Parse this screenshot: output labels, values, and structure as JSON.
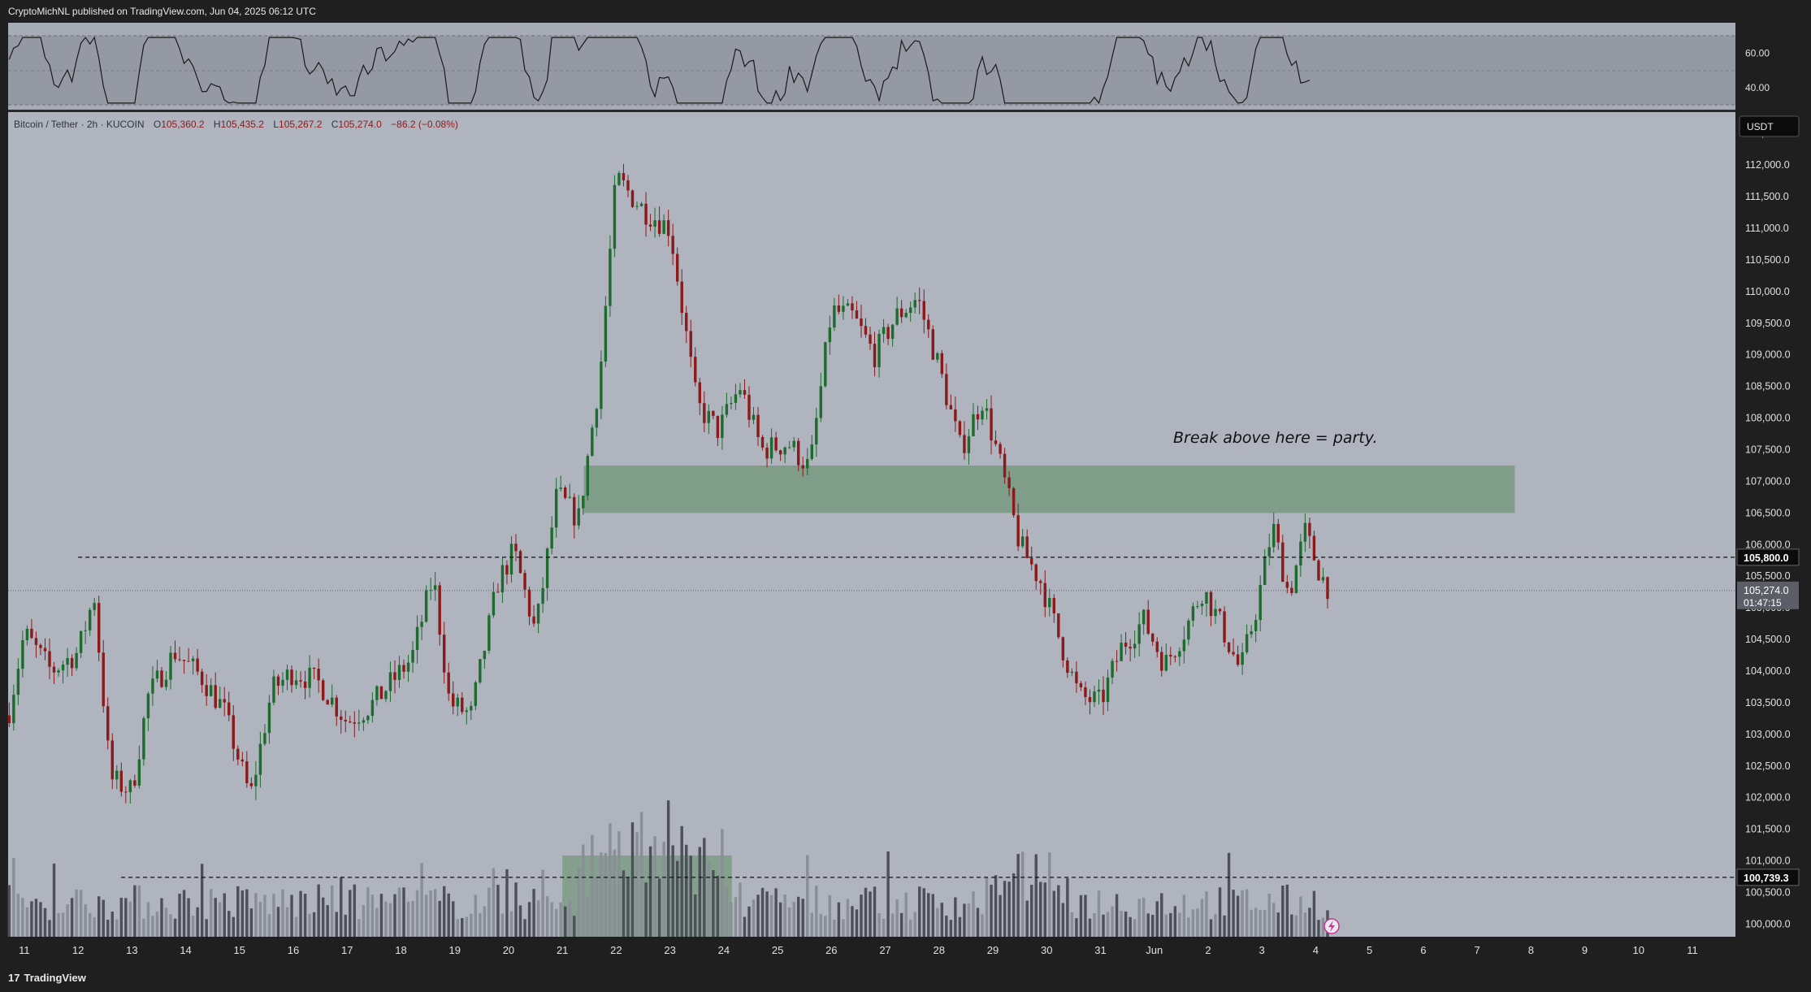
{
  "header": {
    "published": "CryptoMichNL published on TradingView.com, Jun 04, 2025 06:12 UTC"
  },
  "symbol_info": {
    "name": "Bitcoin / Tether · 2h · KUCOIN",
    "o_label": "O",
    "o": "105,360.2",
    "h_label": "H",
    "h": "105,435.2",
    "l_label": "L",
    "l": "105,267.2",
    "c_label": "C",
    "c": "105,274.0",
    "change": "−86.2 (−0.08%)"
  },
  "currency_button": "USDT",
  "annotation": "Break above here = party.",
  "footer": {
    "logo": "TradingView"
  },
  "colors": {
    "background": "#b0b4bf",
    "up": "#1e6b2e",
    "down": "#8b1a1a",
    "zone": "#5a8a5e",
    "axis_bg": "#1f1f1f",
    "axis_text": "#e0e0e0"
  },
  "chart_data": {
    "type": "candlestick",
    "symbol": "BTCUSDT",
    "interval": "2h",
    "ylim": [
      99800,
      112850
    ],
    "y_ticks": [
      100000,
      100500,
      101000,
      101500,
      102000,
      102500,
      103000,
      103500,
      104000,
      104500,
      105000,
      105500,
      106000,
      106500,
      107000,
      107500,
      108000,
      108500,
      109000,
      109500,
      110000,
      110500,
      111000,
      111500,
      112000,
      112500
    ],
    "y_tick_labels": [
      "100,000.0",
      "100,500.0",
      "101,000.0",
      "101,500.0",
      "102,000.0",
      "102,500.0",
      "103,000.0",
      "103,500.0",
      "104,000.0",
      "104,500.0",
      "105,000.0",
      "105,500.0",
      "106,000.0",
      "106,500.0",
      "107,000.0",
      "107,500.0",
      "108,000.0",
      "108,500.0",
      "109,000.0",
      "109,500.0",
      "110,000.0",
      "110,500.0",
      "111,000.0",
      "111,500.0",
      "112,000.0",
      "112,500.0"
    ],
    "x_tick_labels": [
      "11",
      "12",
      "13",
      "14",
      "15",
      "16",
      "17",
      "18",
      "19",
      "20",
      "21",
      "22",
      "23",
      "24",
      "25",
      "26",
      "27",
      "28",
      "29",
      "30",
      "31",
      "Jun",
      "2",
      "3",
      "4",
      "5",
      "6",
      "7",
      "8",
      "9",
      "10",
      "11"
    ],
    "x_range_days": [
      10.7,
      42.8
    ],
    "last_day": 35.28,
    "key_points": [
      {
        "day": 10.7,
        "price": 103300
      },
      {
        "day": 11.0,
        "price": 104600
      },
      {
        "day": 11.5,
        "price": 104000
      },
      {
        "day": 12.0,
        "price": 104300
      },
      {
        "day": 12.3,
        "price": 105200
      },
      {
        "day": 12.6,
        "price": 102300
      },
      {
        "day": 13.0,
        "price": 102100
      },
      {
        "day": 13.3,
        "price": 103600
      },
      {
        "day": 13.8,
        "price": 104300
      },
      {
        "day": 14.3,
        "price": 103900
      },
      {
        "day": 14.7,
        "price": 103400
      },
      {
        "day": 15.2,
        "price": 102000
      },
      {
        "day": 15.6,
        "price": 103700
      },
      {
        "day": 16.0,
        "price": 104000
      },
      {
        "day": 16.5,
        "price": 103800
      },
      {
        "day": 17.0,
        "price": 103200
      },
      {
        "day": 17.5,
        "price": 103500
      },
      {
        "day": 18.2,
        "price": 104200
      },
      {
        "day": 18.6,
        "price": 105500
      },
      {
        "day": 18.9,
        "price": 103500
      },
      {
        "day": 19.3,
        "price": 103300
      },
      {
        "day": 19.8,
        "price": 105400
      },
      {
        "day": 20.1,
        "price": 105900
      },
      {
        "day": 20.5,
        "price": 104600
      },
      {
        "day": 20.9,
        "price": 106800
      },
      {
        "day": 21.3,
        "price": 106400
      },
      {
        "day": 21.7,
        "price": 108700
      },
      {
        "day": 22.0,
        "price": 111800
      },
      {
        "day": 22.5,
        "price": 111300
      },
      {
        "day": 23.0,
        "price": 111000
      },
      {
        "day": 23.5,
        "price": 108200
      },
      {
        "day": 23.9,
        "price": 107800
      },
      {
        "day": 24.3,
        "price": 108500
      },
      {
        "day": 24.7,
        "price": 107500
      },
      {
        "day": 25.2,
        "price": 107600
      },
      {
        "day": 25.6,
        "price": 107200
      },
      {
        "day": 26.0,
        "price": 109700
      },
      {
        "day": 26.4,
        "price": 109600
      },
      {
        "day": 26.8,
        "price": 109000
      },
      {
        "day": 27.2,
        "price": 109600
      },
      {
        "day": 27.6,
        "price": 109900
      },
      {
        "day": 28.0,
        "price": 108800
      },
      {
        "day": 28.4,
        "price": 107500
      },
      {
        "day": 28.8,
        "price": 108300
      },
      {
        "day": 29.1,
        "price": 107400
      },
      {
        "day": 29.5,
        "price": 106000
      },
      {
        "day": 29.9,
        "price": 105400
      },
      {
        "day": 30.2,
        "price": 104600
      },
      {
        "day": 30.6,
        "price": 103600
      },
      {
        "day": 31.0,
        "price": 103500
      },
      {
        "day": 31.4,
        "price": 104400
      },
      {
        "day": 31.8,
        "price": 104800
      },
      {
        "day": 32.2,
        "price": 104100
      },
      {
        "day": 32.6,
        "price": 104700
      },
      {
        "day": 32.9,
        "price": 105300
      },
      {
        "day": 33.2,
        "price": 104800
      },
      {
        "day": 33.6,
        "price": 104000
      },
      {
        "day": 33.9,
        "price": 105000
      },
      {
        "day": 34.2,
        "price": 106300
      },
      {
        "day": 34.5,
        "price": 105200
      },
      {
        "day": 34.8,
        "price": 106200
      },
      {
        "day": 35.1,
        "price": 105500
      },
      {
        "day": 35.28,
        "price": 105274
      }
    ],
    "resistance_zone": {
      "from": 106500,
      "to": 107250,
      "day_start": 21.4,
      "day_end": 38.7
    },
    "volume_zone": {
      "day_start": 21.0,
      "day_end": 24.15
    },
    "horizontal_lines": [
      {
        "price": 105800,
        "label": "105,800.0",
        "day_start": 12.0
      },
      {
        "price": 100739.3,
        "label": "100,739.3",
        "day_start": 12.8
      }
    ],
    "last_price": {
      "price": 105274,
      "label": "105,274.0",
      "countdown": "01:47:15"
    },
    "rsi": {
      "ticks": [
        60,
        40
      ],
      "tick_labels": [
        "60.00",
        "40.00"
      ],
      "upper": 70,
      "lower": 30,
      "last_day": 34.9
    }
  }
}
